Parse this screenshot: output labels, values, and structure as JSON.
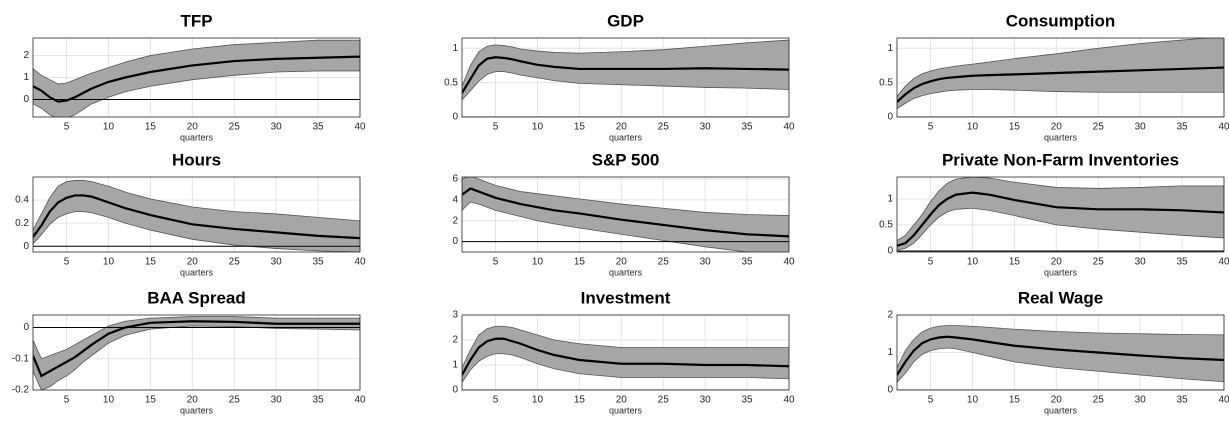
{
  "chart_data": [
    {
      "type": "line",
      "title": "TFP",
      "xlabel": "quarters",
      "grid": true,
      "hline": 0,
      "x": [
        1,
        2,
        3,
        4,
        5,
        6,
        7,
        8,
        10,
        12,
        15,
        20,
        25,
        30,
        35,
        40
      ],
      "xlim": [
        1,
        40
      ],
      "xticks": [
        5,
        10,
        15,
        20,
        25,
        30,
        35,
        40
      ],
      "ylim": [
        -0.8,
        2.8
      ],
      "yticks": [
        0,
        1,
        2
      ],
      "band": {
        "color": "#a6a6a6",
        "upper": [
          1.4,
          1.1,
          0.9,
          0.7,
          0.75,
          0.9,
          1.05,
          1.2,
          1.45,
          1.7,
          2.0,
          2.3,
          2.5,
          2.6,
          2.7,
          2.7
        ],
        "lower": [
          -0.2,
          -0.4,
          -0.7,
          -0.9,
          -0.85,
          -0.7,
          -0.45,
          -0.2,
          0.1,
          0.35,
          0.6,
          0.9,
          1.1,
          1.25,
          1.3,
          1.3
        ]
      },
      "series": [
        {
          "color": "#000000",
          "values": [
            0.6,
            0.4,
            0.1,
            -0.1,
            -0.05,
            0.1,
            0.3,
            0.5,
            0.8,
            1.0,
            1.25,
            1.55,
            1.75,
            1.85,
            1.9,
            1.95
          ]
        }
      ]
    },
    {
      "type": "line",
      "title": "GDP",
      "xlabel": "quarters",
      "grid": true,
      "hline": 0,
      "x": [
        1,
        2,
        3,
        4,
        5,
        6,
        7,
        8,
        10,
        12,
        15,
        20,
        25,
        30,
        35,
        40
      ],
      "xlim": [
        1,
        40
      ],
      "xticks": [
        5,
        10,
        15,
        20,
        25,
        30,
        35,
        40
      ],
      "ylim": [
        0,
        1.15
      ],
      "yticks": [
        0,
        0.5,
        1
      ],
      "band": {
        "color": "#a6a6a6",
        "upper": [
          0.45,
          0.75,
          0.95,
          1.03,
          1.05,
          1.04,
          1.02,
          0.99,
          0.96,
          0.94,
          0.93,
          0.95,
          0.98,
          1.03,
          1.08,
          1.12
        ],
        "lower": [
          0.25,
          0.38,
          0.52,
          0.62,
          0.66,
          0.66,
          0.64,
          0.61,
          0.57,
          0.53,
          0.49,
          0.47,
          0.45,
          0.43,
          0.42,
          0.4
        ]
      },
      "series": [
        {
          "color": "#000000",
          "values": [
            0.35,
            0.55,
            0.75,
            0.85,
            0.87,
            0.86,
            0.84,
            0.81,
            0.76,
            0.73,
            0.7,
            0.7,
            0.7,
            0.71,
            0.7,
            0.69
          ]
        }
      ]
    },
    {
      "type": "line",
      "title": "Consumption",
      "xlabel": "quarters",
      "grid": true,
      "hline": 0,
      "x": [
        1,
        2,
        3,
        4,
        5,
        6,
        7,
        8,
        10,
        12,
        15,
        20,
        25,
        30,
        35,
        40
      ],
      "xlim": [
        1,
        40
      ],
      "xticks": [
        5,
        10,
        15,
        20,
        25,
        30,
        35,
        40
      ],
      "ylim": [
        0,
        1.15
      ],
      "yticks": [
        0,
        0.5,
        1
      ],
      "band": {
        "color": "#a6a6a6",
        "upper": [
          0.3,
          0.45,
          0.56,
          0.63,
          0.67,
          0.7,
          0.72,
          0.74,
          0.77,
          0.8,
          0.85,
          0.92,
          1.0,
          1.07,
          1.12,
          1.17
        ],
        "lower": [
          0.12,
          0.2,
          0.27,
          0.31,
          0.34,
          0.36,
          0.38,
          0.39,
          0.4,
          0.4,
          0.39,
          0.37,
          0.36,
          0.36,
          0.36,
          0.36
        ]
      },
      "series": [
        {
          "color": "#000000",
          "values": [
            0.22,
            0.33,
            0.42,
            0.48,
            0.52,
            0.55,
            0.57,
            0.58,
            0.6,
            0.61,
            0.62,
            0.64,
            0.66,
            0.68,
            0.7,
            0.72
          ]
        }
      ]
    },
    {
      "type": "line",
      "title": "Hours",
      "xlabel": "quarters",
      "grid": true,
      "hline": 0,
      "x": [
        1,
        2,
        3,
        4,
        5,
        6,
        7,
        8,
        10,
        12,
        15,
        20,
        25,
        30,
        35,
        40
      ],
      "xlim": [
        1,
        40
      ],
      "xticks": [
        5,
        10,
        15,
        20,
        25,
        30,
        35,
        40
      ],
      "ylim": [
        -0.05,
        0.6
      ],
      "yticks": [
        0,
        0.2,
        0.4
      ],
      "band": {
        "color": "#a6a6a6",
        "upper": [
          0.14,
          0.28,
          0.42,
          0.52,
          0.56,
          0.57,
          0.57,
          0.56,
          0.52,
          0.47,
          0.41,
          0.34,
          0.3,
          0.28,
          0.25,
          0.22
        ],
        "lower": [
          0.02,
          0.1,
          0.19,
          0.25,
          0.28,
          0.3,
          0.3,
          0.29,
          0.25,
          0.2,
          0.14,
          0.06,
          0.01,
          -0.02,
          -0.04,
          -0.05
        ]
      },
      "series": [
        {
          "color": "#000000",
          "values": [
            0.08,
            0.18,
            0.3,
            0.38,
            0.42,
            0.44,
            0.44,
            0.43,
            0.38,
            0.33,
            0.27,
            0.19,
            0.15,
            0.12,
            0.09,
            0.07
          ]
        }
      ]
    },
    {
      "type": "line",
      "title": "S&P 500",
      "xlabel": "quarters",
      "grid": true,
      "hline": 0,
      "x": [
        1,
        2,
        3,
        4,
        5,
        6,
        7,
        8,
        10,
        12,
        15,
        20,
        25,
        30,
        35,
        40
      ],
      "xlim": [
        1,
        40
      ],
      "xticks": [
        5,
        10,
        15,
        20,
        25,
        30,
        35,
        40
      ],
      "ylim": [
        -1,
        6.2
      ],
      "yticks": [
        0,
        2,
        4,
        6
      ],
      "band": {
        "color": "#a6a6a6",
        "upper": [
          6.0,
          6.3,
          6.0,
          5.7,
          5.4,
          5.2,
          5.0,
          4.8,
          4.6,
          4.4,
          4.1,
          3.6,
          3.2,
          2.8,
          2.6,
          2.5
        ],
        "lower": [
          3.0,
          3.8,
          3.6,
          3.3,
          3.0,
          2.8,
          2.6,
          2.4,
          2.0,
          1.7,
          1.3,
          0.7,
          0.1,
          -0.5,
          -1.0,
          -1.2
        ]
      },
      "series": [
        {
          "color": "#000000",
          "values": [
            4.5,
            5.1,
            4.8,
            4.5,
            4.2,
            4.0,
            3.8,
            3.6,
            3.3,
            3.0,
            2.7,
            2.1,
            1.6,
            1.1,
            0.7,
            0.5
          ]
        }
      ]
    },
    {
      "type": "line",
      "title": "Private Non-Farm Inventories",
      "xlabel": "quarters",
      "grid": true,
      "hline": 0,
      "x": [
        1,
        2,
        3,
        4,
        5,
        6,
        7,
        8,
        10,
        12,
        15,
        20,
        25,
        30,
        35,
        40
      ],
      "xlim": [
        1,
        40
      ],
      "xticks": [
        5,
        10,
        15,
        20,
        25,
        30,
        35,
        40
      ],
      "ylim": [
        -0.02,
        1.42
      ],
      "yticks": [
        0,
        0.5,
        1
      ],
      "band": {
        "color": "#a6a6a6",
        "upper": [
          0.2,
          0.3,
          0.5,
          0.7,
          0.95,
          1.15,
          1.3,
          1.38,
          1.42,
          1.4,
          1.32,
          1.22,
          1.2,
          1.22,
          1.25,
          1.25
        ],
        "lower": [
          0.02,
          0.05,
          0.15,
          0.32,
          0.5,
          0.65,
          0.75,
          0.8,
          0.82,
          0.78,
          0.68,
          0.5,
          0.42,
          0.36,
          0.3,
          0.25
        ]
      },
      "series": [
        {
          "color": "#000000",
          "values": [
            0.1,
            0.15,
            0.3,
            0.5,
            0.7,
            0.88,
            1.0,
            1.08,
            1.12,
            1.08,
            0.98,
            0.84,
            0.8,
            0.8,
            0.78,
            0.74
          ]
        }
      ]
    },
    {
      "type": "line",
      "title": "BAA Spread",
      "xlabel": "quarters",
      "grid": true,
      "hline": 0,
      "x": [
        1,
        2,
        3,
        4,
        5,
        6,
        7,
        8,
        10,
        12,
        15,
        20,
        25,
        30,
        35,
        40
      ],
      "xlim": [
        1,
        40
      ],
      "xticks": [
        5,
        10,
        15,
        20,
        25,
        30,
        35,
        40
      ],
      "ylim": [
        -0.2,
        0.04
      ],
      "yticks": [
        -0.2,
        -0.1,
        0
      ],
      "band": {
        "color": "#a6a6a6",
        "upper": [
          -0.04,
          -0.1,
          -0.09,
          -0.08,
          -0.07,
          -0.055,
          -0.04,
          -0.025,
          0.005,
          0.02,
          0.03,
          0.035,
          0.035,
          0.03,
          0.03,
          0.03
        ],
        "lower": [
          -0.14,
          -0.2,
          -0.19,
          -0.17,
          -0.155,
          -0.135,
          -0.11,
          -0.09,
          -0.05,
          -0.025,
          -0.005,
          0.005,
          0.003,
          -0.003,
          -0.005,
          -0.008
        ]
      },
      "series": [
        {
          "color": "#000000",
          "values": [
            -0.09,
            -0.155,
            -0.14,
            -0.125,
            -0.11,
            -0.095,
            -0.075,
            -0.055,
            -0.02,
            0.0,
            0.015,
            0.02,
            0.018,
            0.012,
            0.012,
            0.012
          ]
        }
      ]
    },
    {
      "type": "line",
      "title": "Investment",
      "xlabel": "quarters",
      "grid": true,
      "hline": 0,
      "x": [
        1,
        2,
        3,
        4,
        5,
        6,
        7,
        8,
        10,
        12,
        15,
        20,
        25,
        30,
        35,
        40
      ],
      "xlim": [
        1,
        40
      ],
      "xticks": [
        5,
        10,
        15,
        20,
        25,
        30,
        35,
        40
      ],
      "ylim": [
        0,
        3
      ],
      "yticks": [
        0,
        1,
        2,
        3
      ],
      "band": {
        "color": "#a6a6a6",
        "upper": [
          0.9,
          1.6,
          2.2,
          2.45,
          2.55,
          2.55,
          2.5,
          2.4,
          2.2,
          2.0,
          1.85,
          1.7,
          1.7,
          1.7,
          1.7,
          1.7
        ],
        "lower": [
          0.3,
          0.8,
          1.15,
          1.35,
          1.45,
          1.45,
          1.4,
          1.3,
          1.05,
          0.85,
          0.65,
          0.5,
          0.5,
          0.5,
          0.5,
          0.45
        ]
      },
      "series": [
        {
          "color": "#000000",
          "values": [
            0.6,
            1.2,
            1.7,
            1.95,
            2.05,
            2.05,
            1.95,
            1.85,
            1.6,
            1.4,
            1.2,
            1.05,
            1.05,
            1.0,
            1.0,
            0.95
          ]
        }
      ]
    },
    {
      "type": "line",
      "title": "Real Wage",
      "xlabel": "quarters",
      "grid": true,
      "hline": 0,
      "x": [
        1,
        2,
        3,
        4,
        5,
        6,
        7,
        8,
        10,
        12,
        15,
        20,
        25,
        30,
        35,
        40
      ],
      "xlim": [
        1,
        40
      ],
      "xticks": [
        5,
        10,
        15,
        20,
        25,
        30,
        35,
        40
      ],
      "ylim": [
        0,
        2
      ],
      "yticks": [
        0,
        1,
        2
      ],
      "band": {
        "color": "#a6a6a6",
        "upper": [
          0.6,
          1.05,
          1.35,
          1.55,
          1.65,
          1.7,
          1.72,
          1.72,
          1.7,
          1.67,
          1.62,
          1.56,
          1.52,
          1.5,
          1.48,
          1.47
        ],
        "lower": [
          0.2,
          0.45,
          0.75,
          0.95,
          1.05,
          1.1,
          1.12,
          1.1,
          1.0,
          0.9,
          0.75,
          0.6,
          0.5,
          0.4,
          0.3,
          0.22
        ]
      },
      "series": [
        {
          "color": "#000000",
          "values": [
            0.4,
            0.75,
            1.05,
            1.25,
            1.35,
            1.4,
            1.42,
            1.4,
            1.35,
            1.28,
            1.18,
            1.08,
            1.0,
            0.92,
            0.85,
            0.8
          ]
        }
      ]
    }
  ]
}
